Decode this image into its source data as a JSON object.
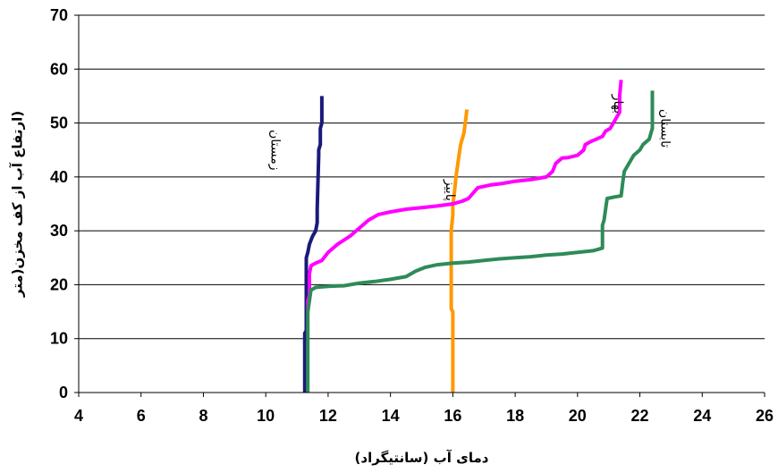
{
  "chart_data": {
    "type": "line",
    "xlabel": "دمای آب (سانتیگراد)",
    "ylabel": "(ارتفاع آب از کف مخزن(متر",
    "xlim": [
      4,
      26
    ],
    "ylim": [
      0,
      70
    ],
    "x_ticks": [
      "4",
      "6",
      "8",
      "10",
      "12",
      "14",
      "16",
      "18",
      "20",
      "22",
      "24",
      "26"
    ],
    "y_ticks": [
      "0",
      "10",
      "20",
      "30",
      "40",
      "50",
      "60",
      "70"
    ],
    "grid": "horizontal",
    "series": [
      {
        "name": "زمستان",
        "color": "#1a1a7a",
        "points": [
          [
            11.25,
            0
          ],
          [
            11.25,
            11
          ],
          [
            11.3,
            11.5
          ],
          [
            11.3,
            25
          ],
          [
            11.35,
            26
          ],
          [
            11.4,
            27.5
          ],
          [
            11.5,
            29
          ],
          [
            11.6,
            30
          ],
          [
            11.65,
            31.5
          ],
          [
            11.65,
            33
          ],
          [
            11.65,
            34
          ],
          [
            11.7,
            44
          ],
          [
            11.7,
            45
          ],
          [
            11.75,
            46
          ],
          [
            11.75,
            49
          ],
          [
            11.8,
            50
          ],
          [
            11.8,
            55
          ]
        ],
        "label": {
          "text": "زمستان",
          "x": 10.3,
          "y": 45
        }
      },
      {
        "name": "پاییز",
        "color": "#ff9900",
        "points": [
          [
            16,
            0
          ],
          [
            16,
            15
          ],
          [
            15.95,
            15.5
          ],
          [
            15.95,
            30
          ],
          [
            16,
            33
          ],
          [
            16,
            35
          ],
          [
            16.05,
            37
          ],
          [
            16.1,
            40
          ],
          [
            16.15,
            42
          ],
          [
            16.2,
            44
          ],
          [
            16.25,
            46
          ],
          [
            16.3,
            47
          ],
          [
            16.35,
            48
          ],
          [
            16.4,
            50
          ],
          [
            16.45,
            52.5
          ]
        ],
        "label": {
          "text": "پاییز",
          "x": 15.9,
          "y": 37.5
        }
      },
      {
        "name": "بهار",
        "color": "#ff00ff",
        "points": [
          [
            11.35,
            15
          ],
          [
            11.35,
            17
          ],
          [
            11.4,
            18
          ],
          [
            11.4,
            22
          ],
          [
            11.45,
            23.5
          ],
          [
            11.6,
            24
          ],
          [
            11.8,
            24.5
          ],
          [
            12,
            26
          ],
          [
            12.3,
            27.5
          ],
          [
            12.7,
            29
          ],
          [
            13,
            30.5
          ],
          [
            13.3,
            32
          ],
          [
            13.6,
            33
          ],
          [
            14,
            33.5
          ],
          [
            14.5,
            34
          ],
          [
            15,
            34.3
          ],
          [
            15.5,
            34.6
          ],
          [
            16,
            35
          ],
          [
            16.3,
            35.5
          ],
          [
            16.5,
            36
          ],
          [
            16.8,
            38
          ],
          [
            17.2,
            38.5
          ],
          [
            17.6,
            38.8
          ],
          [
            18,
            39.2
          ],
          [
            18.5,
            39.5
          ],
          [
            18.8,
            39.8
          ],
          [
            19,
            40
          ],
          [
            19.2,
            41
          ],
          [
            19.3,
            42.5
          ],
          [
            19.5,
            43.5
          ],
          [
            19.7,
            43.6
          ],
          [
            20,
            44
          ],
          [
            20.1,
            44.5
          ],
          [
            20.2,
            45
          ],
          [
            20.25,
            46
          ],
          [
            20.4,
            46.5
          ],
          [
            20.6,
            47
          ],
          [
            20.8,
            47.5
          ],
          [
            20.9,
            48.5
          ],
          [
            21.05,
            49
          ],
          [
            21.15,
            50
          ],
          [
            21.25,
            51
          ],
          [
            21.35,
            52
          ],
          [
            21.35,
            55
          ],
          [
            21.4,
            58
          ]
        ],
        "label": {
          "text": "بهار",
          "x": 21.3,
          "y": 53.5
        }
      },
      {
        "name": "تابستان",
        "color": "#2e8b57",
        "points": [
          [
            11.35,
            0
          ],
          [
            11.35,
            15
          ],
          [
            11.4,
            17
          ],
          [
            11.45,
            19
          ],
          [
            11.6,
            19.5
          ],
          [
            12,
            19.7
          ],
          [
            12.5,
            19.8
          ],
          [
            13,
            20.3
          ],
          [
            13.5,
            20.6
          ],
          [
            14,
            21
          ],
          [
            14.5,
            21.5
          ],
          [
            14.8,
            22.5
          ],
          [
            15.1,
            23.2
          ],
          [
            15.5,
            23.7
          ],
          [
            16,
            24
          ],
          [
            16.5,
            24.2
          ],
          [
            17,
            24.5
          ],
          [
            17.5,
            24.8
          ],
          [
            18,
            25
          ],
          [
            18.5,
            25.2
          ],
          [
            19,
            25.5
          ],
          [
            19.5,
            25.7
          ],
          [
            20,
            26
          ],
          [
            20.5,
            26.3
          ],
          [
            20.8,
            26.8
          ],
          [
            20.8,
            31
          ],
          [
            20.85,
            32
          ],
          [
            20.9,
            34
          ],
          [
            20.95,
            36
          ],
          [
            21.2,
            36.3
          ],
          [
            21.4,
            36.5
          ],
          [
            21.45,
            39
          ],
          [
            21.5,
            41
          ],
          [
            21.6,
            42
          ],
          [
            21.7,
            43
          ],
          [
            21.8,
            44
          ],
          [
            22,
            45
          ],
          [
            22.1,
            46
          ],
          [
            22.3,
            47
          ],
          [
            22.35,
            48
          ],
          [
            22.4,
            49
          ],
          [
            22.4,
            56
          ]
        ],
        "label": {
          "text": "تابستان",
          "x": 22.8,
          "y": 49
        }
      }
    ]
  }
}
